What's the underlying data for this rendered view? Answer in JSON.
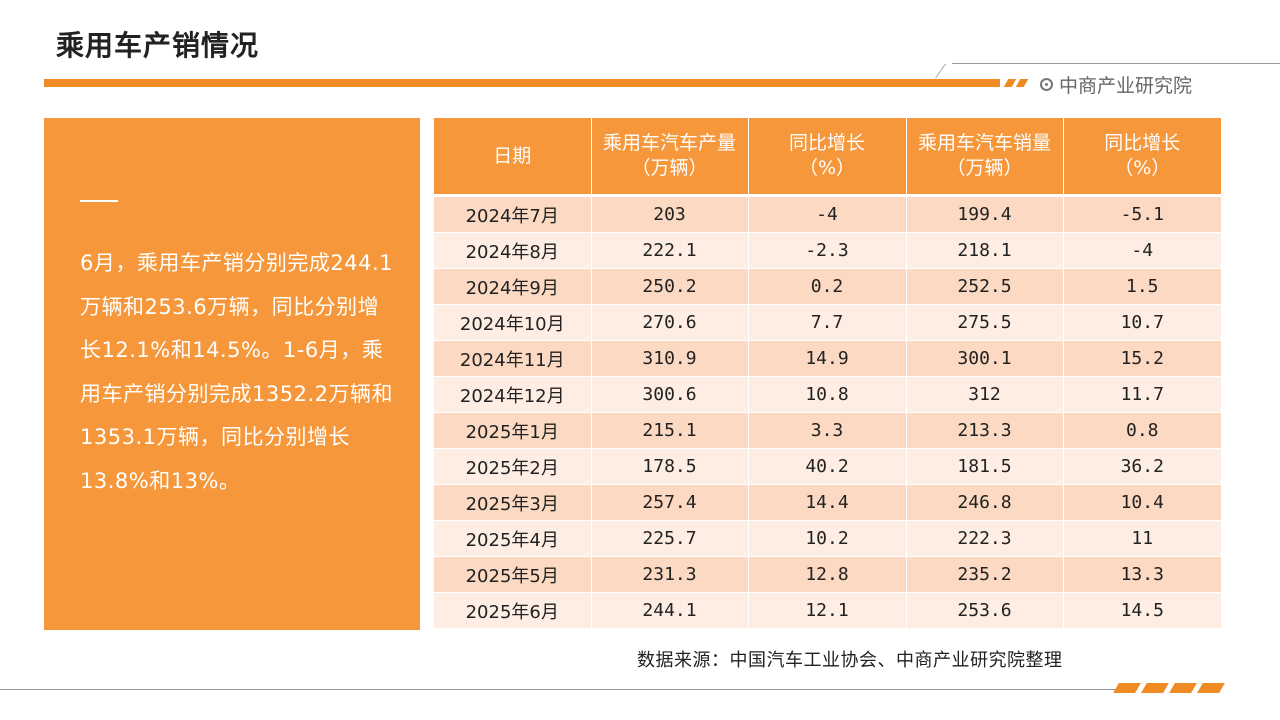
{
  "header": {
    "title": "乘用车产销情况",
    "brand": "中商产业研究院",
    "brand_icon": "circle-dot-icon",
    "accent_color": "#F08A24"
  },
  "summary": {
    "paragraph": "6月，乘用车产销分别完成244.1万辆和253.6万辆，同比分别增长12.1%和14.5%。1-6月，乘用车产销分别完成1352.2万辆和1353.1万辆，同比分别增长13.8%和13%。"
  },
  "table": {
    "columns": [
      {
        "line1": "日期",
        "line2": ""
      },
      {
        "line1": "乘用车汽车产量",
        "line2": "（万辆）"
      },
      {
        "line1": "同比增长",
        "line2": "（%）"
      },
      {
        "line1": "乘用车汽车销量",
        "line2": "（万辆）"
      },
      {
        "line1": "同比增长",
        "line2": "（%）"
      }
    ],
    "rows": [
      {
        "date": "2024年7月",
        "production": "203",
        "production_yoy": "-4",
        "sales": "199.4",
        "sales_yoy": "-5.1"
      },
      {
        "date": "2024年8月",
        "production": "222.1",
        "production_yoy": "-2.3",
        "sales": "218.1",
        "sales_yoy": "-4"
      },
      {
        "date": "2024年9月",
        "production": "250.2",
        "production_yoy": "0.2",
        "sales": "252.5",
        "sales_yoy": "1.5"
      },
      {
        "date": "2024年10月",
        "production": "270.6",
        "production_yoy": "7.7",
        "sales": "275.5",
        "sales_yoy": "10.7"
      },
      {
        "date": "2024年11月",
        "production": "310.9",
        "production_yoy": "14.9",
        "sales": "300.1",
        "sales_yoy": "15.2"
      },
      {
        "date": "2024年12月",
        "production": "300.6",
        "production_yoy": "10.8",
        "sales": "312",
        "sales_yoy": "11.7"
      },
      {
        "date": "2025年1月",
        "production": "215.1",
        "production_yoy": "3.3",
        "sales": "213.3",
        "sales_yoy": "0.8"
      },
      {
        "date": "2025年2月",
        "production": "178.5",
        "production_yoy": "40.2",
        "sales": "181.5",
        "sales_yoy": "36.2"
      },
      {
        "date": "2025年3月",
        "production": "257.4",
        "production_yoy": "14.4",
        "sales": "246.8",
        "sales_yoy": "10.4"
      },
      {
        "date": "2025年4月",
        "production": "225.7",
        "production_yoy": "10.2",
        "sales": "222.3",
        "sales_yoy": "11"
      },
      {
        "date": "2025年5月",
        "production": "231.3",
        "production_yoy": "12.8",
        "sales": "235.2",
        "sales_yoy": "13.3"
      },
      {
        "date": "2025年6月",
        "production": "244.1",
        "production_yoy": "12.1",
        "sales": "253.6",
        "sales_yoy": "14.5"
      }
    ]
  },
  "footer": {
    "source": "数据来源：中国汽车工业协会、中商产业研究院整理"
  }
}
